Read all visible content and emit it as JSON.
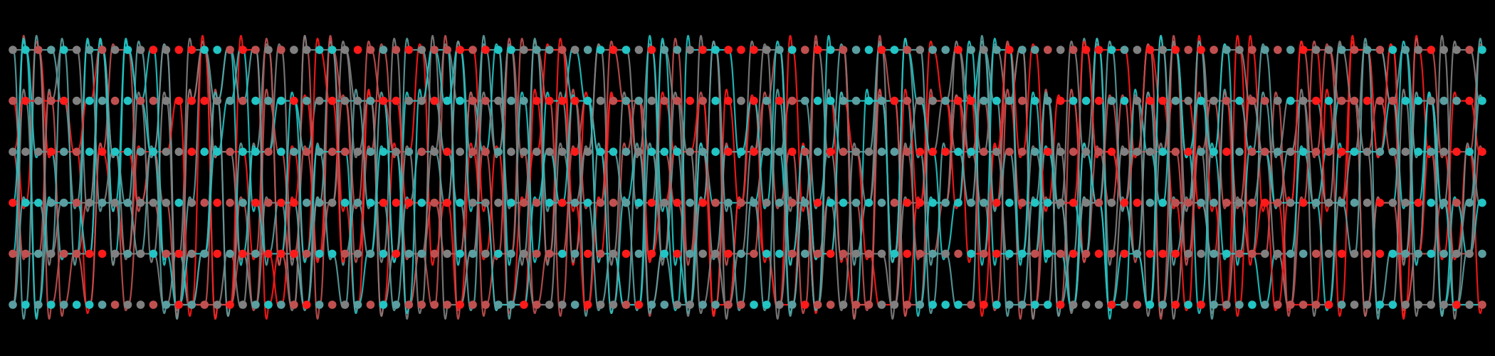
{
  "palette": [
    "#ff1a1a",
    "#c05050",
    "#808080",
    "#5a9ea0",
    "#22c4c4"
  ],
  "background": "#000000",
  "grid": {
    "rows": 6,
    "columns": 116
  },
  "seed": 7
}
